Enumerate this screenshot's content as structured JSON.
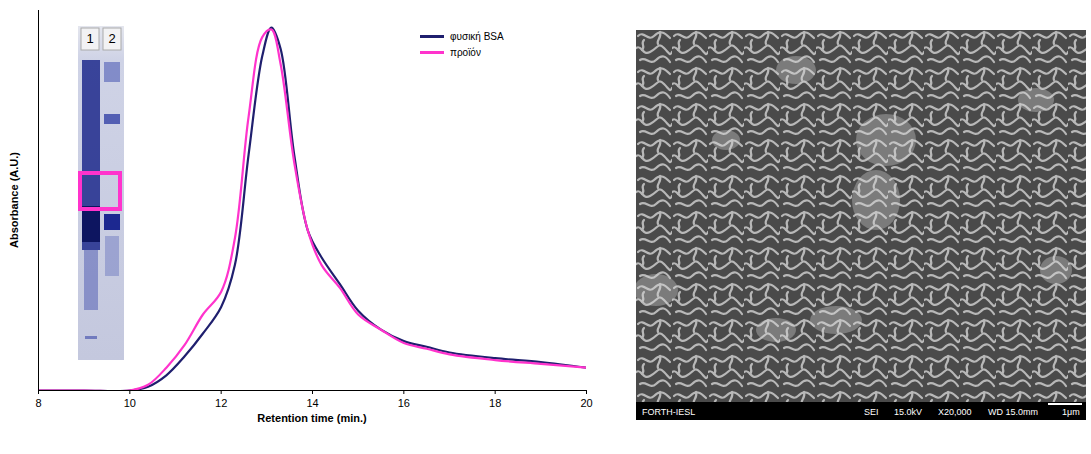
{
  "chart_data": {
    "type": "line",
    "x_label": "Retention time (min.)",
    "y_label": "Absorbance (A.U.)",
    "xlim": [
      8,
      20
    ],
    "xticks": [
      8,
      10,
      12,
      14,
      16,
      18,
      20
    ],
    "ylim": [
      0,
      1
    ],
    "yticks": [],
    "tick_labels": "x",
    "grid": false,
    "legend": "top-right",
    "marker": "none",
    "line_style": "solid",
    "x": [
      8,
      9,
      10,
      10.4,
      10.8,
      11.2,
      11.6,
      12,
      12.3,
      12.6,
      12.9,
      13.1,
      13.3,
      13.6,
      13.9,
      14.2,
      14.6,
      15,
      15.5,
      16,
      16.5,
      17,
      18,
      19,
      20
    ],
    "series": [
      {
        "name": "φυσική BSA",
        "color": "#1f1f6e",
        "values": [
          0,
          0,
          0,
          0.01,
          0.04,
          0.09,
          0.15,
          0.22,
          0.33,
          0.62,
          0.88,
          0.955,
          0.9,
          0.62,
          0.42,
          0.35,
          0.28,
          0.21,
          0.16,
          0.13,
          0.115,
          0.1,
          0.085,
          0.075,
          0.06
        ]
      },
      {
        "name": "προϊόν",
        "color": "#ff33cc",
        "values": [
          0,
          0,
          0,
          0.015,
          0.06,
          0.12,
          0.2,
          0.26,
          0.4,
          0.72,
          0.93,
          0.95,
          0.86,
          0.6,
          0.42,
          0.33,
          0.27,
          0.2,
          0.16,
          0.125,
          0.11,
          0.095,
          0.08,
          0.07,
          0.06
        ]
      }
    ]
  },
  "gel": {
    "lane_labels": [
      "1",
      "2"
    ]
  },
  "sem": {
    "labels": [
      "FORTH-IESL",
      "SEI",
      "15.0kV",
      "X20,000",
      "WD 15.0mm",
      "1μm"
    ]
  }
}
